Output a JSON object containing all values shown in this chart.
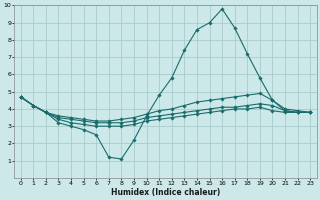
{
  "xlabel": "Humidex (Indice chaleur)",
  "xlim": [
    -0.5,
    23.5
  ],
  "ylim": [
    0,
    10
  ],
  "xticks": [
    0,
    1,
    2,
    3,
    4,
    5,
    6,
    7,
    8,
    9,
    10,
    11,
    12,
    13,
    14,
    15,
    16,
    17,
    18,
    19,
    20,
    21,
    22,
    23
  ],
  "yticks": [
    1,
    2,
    3,
    4,
    5,
    6,
    7,
    8,
    9,
    10
  ],
  "bg_color": "#cce8e8",
  "grid_color": "#aacccc",
  "line_color": "#1a6b6b",
  "series": [
    {
      "x": [
        0,
        1,
        2,
        3,
        4,
        5,
        6,
        7,
        8,
        9,
        10,
        11,
        12,
        13,
        14,
        15,
        16,
        17,
        18,
        19,
        20,
        21,
        22,
        23
      ],
      "y": [
        4.7,
        4.2,
        3.8,
        3.2,
        3.0,
        2.8,
        2.5,
        1.2,
        1.1,
        2.2,
        3.6,
        4.8,
        5.8,
        7.4,
        8.6,
        9.0,
        9.8,
        8.7,
        7.2,
        5.8,
        4.5,
        3.9,
        3.8,
        3.8
      ]
    },
    {
      "x": [
        0,
        1,
        2,
        3,
        4,
        5,
        6,
        7,
        8,
        9,
        10,
        11,
        12,
        13,
        14,
        15,
        16,
        17,
        18,
        19,
        20,
        21,
        22,
        23
      ],
      "y": [
        4.7,
        4.2,
        3.8,
        3.6,
        3.5,
        3.4,
        3.3,
        3.3,
        3.4,
        3.5,
        3.7,
        3.9,
        4.0,
        4.2,
        4.4,
        4.5,
        4.6,
        4.7,
        4.8,
        4.9,
        4.5,
        4.0,
        3.9,
        3.8
      ]
    },
    {
      "x": [
        0,
        1,
        2,
        3,
        4,
        5,
        6,
        7,
        8,
        9,
        10,
        11,
        12,
        13,
        14,
        15,
        16,
        17,
        18,
        19,
        20,
        21,
        22,
        23
      ],
      "y": [
        4.7,
        4.2,
        3.8,
        3.5,
        3.4,
        3.3,
        3.2,
        3.2,
        3.2,
        3.3,
        3.5,
        3.6,
        3.7,
        3.8,
        3.9,
        4.0,
        4.1,
        4.1,
        4.2,
        4.3,
        4.2,
        3.9,
        3.8,
        3.8
      ]
    },
    {
      "x": [
        0,
        1,
        2,
        3,
        4,
        5,
        6,
        7,
        8,
        9,
        10,
        11,
        12,
        13,
        14,
        15,
        16,
        17,
        18,
        19,
        20,
        21,
        22,
        23
      ],
      "y": [
        4.7,
        4.2,
        3.8,
        3.4,
        3.2,
        3.1,
        3.0,
        3.0,
        3.0,
        3.1,
        3.3,
        3.4,
        3.5,
        3.6,
        3.7,
        3.8,
        3.9,
        4.0,
        4.0,
        4.1,
        3.9,
        3.8,
        3.8,
        3.8
      ]
    }
  ]
}
